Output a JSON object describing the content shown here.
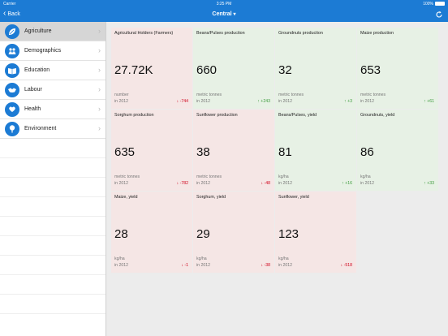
{
  "status_bar": {
    "carrier": "Carrier ",
    "time": "3:25 PM",
    "battery": "100%"
  },
  "nav": {
    "back_label": "Back",
    "title": "Central",
    "icons": {
      "back": "chevron-left-icon",
      "title_menu": "chevron-down-icon",
      "refresh": "refresh-icon"
    }
  },
  "colors": {
    "brand": "#1c7bd4",
    "negative_tile": "#f5e6e5",
    "positive_tile": "#e7f1e5",
    "negative_text": "#d0021b",
    "positive_text": "#3c9a3c"
  },
  "sidebar": {
    "items": [
      {
        "label": "Agriculture",
        "icon": "leaf-icon",
        "active": true
      },
      {
        "label": "Demographics",
        "icon": "people-icon",
        "active": false
      },
      {
        "label": "Education",
        "icon": "book-icon",
        "active": false
      },
      {
        "label": "Labour",
        "icon": "handshake-icon",
        "active": false
      },
      {
        "label": "Health",
        "icon": "heart-hand-icon",
        "active": false
      },
      {
        "label": "Environment",
        "icon": "tree-icon",
        "active": false
      }
    ]
  },
  "tiles": [
    {
      "title": "Agricultural Holders (Farmers)",
      "value": "27.72K",
      "unit": "number",
      "year": "in 2012",
      "delta": "↓ -744",
      "trend": "down"
    },
    {
      "title": "Beans/Pulses production",
      "value": "660",
      "unit": "metric tonnes",
      "year": "in 2012",
      "delta": "↑ +243",
      "trend": "up"
    },
    {
      "title": "Groundnuts production",
      "value": "32",
      "unit": "metric tonnes",
      "year": "in 2012",
      "delta": "↑ +3",
      "trend": "up"
    },
    {
      "title": "Maize production",
      "value": "653",
      "unit": "metric tonnes",
      "year": "in 2012",
      "delta": "↑ +61",
      "trend": "up"
    },
    {
      "title": "Sorghum production",
      "value": "635",
      "unit": "metric tonnes",
      "year": "in 2012",
      "delta": "↓ -782",
      "trend": "down"
    },
    {
      "title": "Sunflower production",
      "value": "38",
      "unit": "metric tonnes",
      "year": "in 2012",
      "delta": "↓ -48",
      "trend": "down"
    },
    {
      "title": "Beans/Pulses, yield",
      "value": "81",
      "unit": "kg/ha",
      "year": "in 2012",
      "delta": "↑ +16",
      "trend": "up"
    },
    {
      "title": "Groundnuts, yield",
      "value": "86",
      "unit": "kg/ha",
      "year": "in 2012",
      "delta": "↑ +33",
      "trend": "up"
    },
    {
      "title": "Maize, yield",
      "value": "28",
      "unit": "kg/ha",
      "year": "in 2012",
      "delta": "↓ -1",
      "trend": "down"
    },
    {
      "title": "Sorghum, yield",
      "value": "29",
      "unit": "kg/ha",
      "year": "in 2012",
      "delta": "↓ -38",
      "trend": "down"
    },
    {
      "title": "Sunflower, yield",
      "value": "123",
      "unit": "kg/ha",
      "year": "in 2012",
      "delta": "↓ -518",
      "trend": "down"
    }
  ]
}
